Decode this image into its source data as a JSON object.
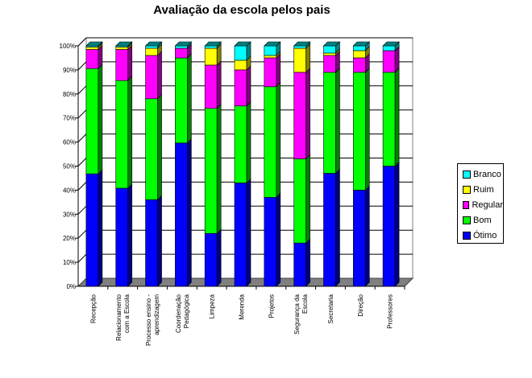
{
  "chart_data": {
    "type": "bar",
    "stacked": true,
    "percent_stacked": true,
    "title": "Avaliação da escola pelos pais",
    "xlabel": "",
    "ylabel": "",
    "ylim": [
      0,
      100
    ],
    "y_ticks": [
      "0%",
      "10%",
      "20%",
      "30%",
      "40%",
      "50%",
      "60%",
      "70%",
      "80%",
      "90%",
      "100%"
    ],
    "grid": true,
    "legend_position": "right",
    "categories": [
      "Recepção",
      "Relacionamento com a Escola",
      "Processo ensino - aprendizagem",
      "Coordenação Pedagógica",
      "Limpeza",
      "Merenda",
      "Projetos",
      "Segurança da Escola",
      "Secretaria",
      "Direção",
      "Professores"
    ],
    "series": [
      {
        "name": "Ótimo",
        "color": "#0000ff",
        "side": "#000080",
        "values": [
          47,
          41,
          36,
          59,
          22,
          43,
          37,
          18,
          47,
          40,
          50
        ]
      },
      {
        "name": "Bom",
        "color": "#00ff00",
        "side": "#008000",
        "values": [
          44,
          45,
          42,
          35,
          52,
          32,
          46,
          35,
          42,
          49,
          39
        ]
      },
      {
        "name": "Regular",
        "color": "#ff00ff",
        "side": "#800080",
        "values": [
          8,
          13,
          18,
          4,
          18,
          15,
          12,
          36,
          7,
          6,
          9
        ]
      },
      {
        "name": "Ruim",
        "color": "#ffff00",
        "side": "#808000",
        "values": [
          1,
          1,
          3,
          0,
          7,
          4,
          1,
          10,
          1,
          3,
          0
        ]
      },
      {
        "name": "Branco",
        "color": "#00ffff",
        "side": "#008080",
        "values": [
          0.5,
          0.5,
          1,
          1,
          1,
          6,
          4,
          1,
          3,
          2,
          2
        ]
      }
    ]
  }
}
